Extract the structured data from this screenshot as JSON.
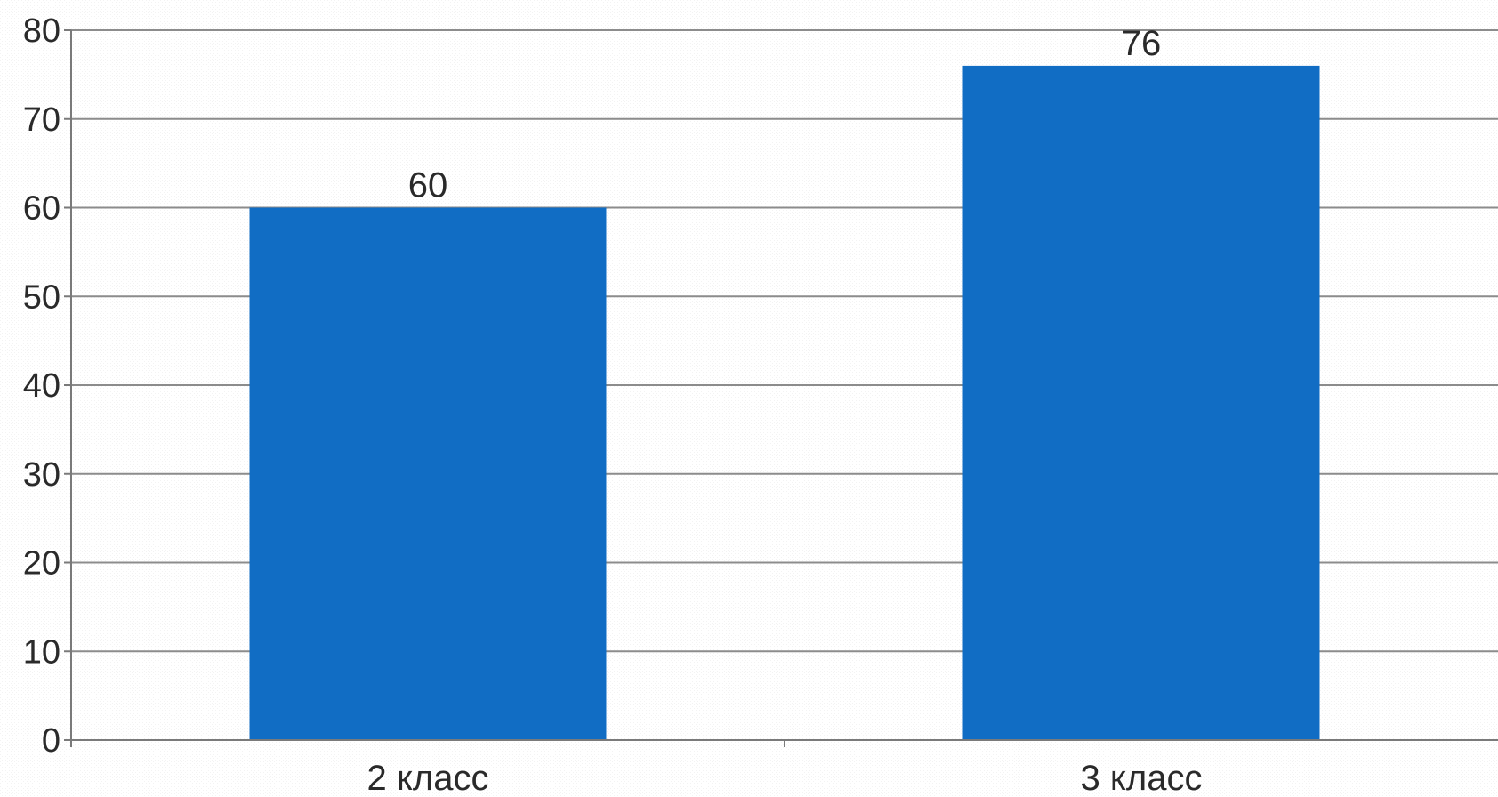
{
  "chart_data": {
    "type": "bar",
    "categories": [
      "2 класс",
      "3 класс"
    ],
    "values": [
      60,
      76
    ],
    "data_labels": [
      "60",
      "76"
    ],
    "ylim": [
      0,
      80
    ],
    "yticks": [
      0,
      10,
      20,
      30,
      40,
      50,
      60,
      70,
      80
    ],
    "ytick_labels": [
      "0",
      "10",
      "20",
      "30",
      "40",
      "50",
      "60",
      "70",
      "80"
    ],
    "grid": true,
    "legend": "none",
    "colors": {
      "bar": "#116dc4",
      "grid": "#8c8c8c",
      "axis": "#7a7a7a",
      "text": "#2a2a2a"
    }
  }
}
